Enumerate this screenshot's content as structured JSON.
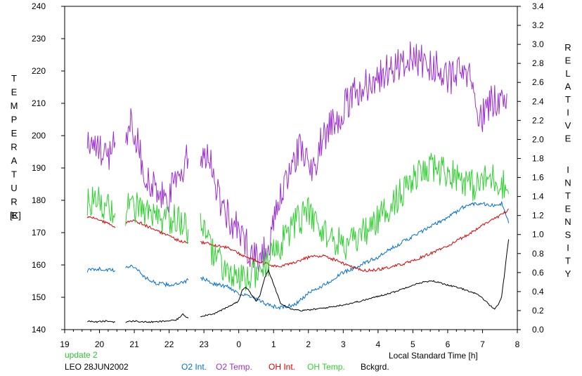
{
  "chart_data": {
    "type": "line",
    "xlabel": "Local Standard Time [h]",
    "left_axis_label": "TEMPERATURE",
    "left_axis_unit": "[K]",
    "right_axis_label": "RELATIVE INTENSITY",
    "x_range": [
      19,
      8
    ],
    "x_ticks": [
      "19",
      "20",
      "21",
      "22",
      "23",
      "0",
      "1",
      "2",
      "3",
      "4",
      "5",
      "6",
      "7",
      "8"
    ],
    "y_left_range": [
      140,
      240
    ],
    "y_left_ticks": [
      "140",
      "150",
      "160",
      "170",
      "180",
      "190",
      "200",
      "210",
      "220",
      "230",
      "240"
    ],
    "y_right_range": [
      0.0,
      3.4
    ],
    "y_right_ticks": [
      "0.0",
      "0.2",
      "0.4",
      "0.6",
      "0.8",
      "1.0",
      "1.2",
      "1.4",
      "1.6",
      "1.8",
      "2.0",
      "2.2",
      "2.4",
      "2.6",
      "2.8",
      "3.0",
      "3.2",
      "3.4"
    ],
    "grid": false,
    "legend_position": "bottom",
    "update_note": "update 2",
    "station_date": "LEO 28JUN2002",
    "series": [
      {
        "name": "O2 Int.",
        "axis": "right",
        "color": "#0070d0",
        "noise": 0.02,
        "segments": [
          {
            "x": [
              19.65,
              19.9,
              20.2,
              20.45
            ],
            "y": [
              0.62,
              0.64,
              0.63,
              0.62
            ]
          },
          {
            "x": [
              20.75,
              20.9,
              21.1,
              21.3,
              21.6,
              22.0,
              22.3,
              22.55
            ],
            "y": [
              0.64,
              0.68,
              0.63,
              0.55,
              0.49,
              0.47,
              0.48,
              0.52
            ]
          },
          {
            "x": [
              22.9,
              23.3,
              23.7,
              24.0,
              24.3,
              24.6,
              24.9,
              25.2,
              25.6,
              26.0,
              26.5,
              27.0,
              27.5,
              28.0,
              28.5,
              29.0,
              29.5,
              30.0,
              30.5,
              30.8,
              31.1,
              31.35,
              31.55,
              31.75
            ],
            "y": [
              0.55,
              0.48,
              0.45,
              0.38,
              0.35,
              0.3,
              0.25,
              0.23,
              0.26,
              0.38,
              0.48,
              0.6,
              0.68,
              0.76,
              0.88,
              0.98,
              1.08,
              1.18,
              1.3,
              1.33,
              1.32,
              1.3,
              1.33,
              1.12
            ]
          }
        ]
      },
      {
        "name": "O2 Temp.",
        "axis": "left",
        "color": "#9b30d0",
        "noise": 5.5,
        "segments": [
          {
            "x": [
              19.65,
              19.9,
              20.2,
              20.45
            ],
            "y": [
              199,
              196,
              193,
              198
            ]
          },
          {
            "x": [
              20.75,
              20.9,
              21.1,
              21.3,
              21.6,
              21.9,
              22.2,
              22.55
            ],
            "y": [
              200,
              205,
              198,
              188,
              183,
              179,
              186,
              193
            ]
          },
          {
            "x": [
              22.9,
              23.1,
              23.4,
              23.7,
              24.0,
              24.3,
              24.6,
              24.9,
              25.2,
              25.5,
              25.8,
              26.1,
              26.4,
              26.7,
              27.0,
              27.5,
              28.0,
              28.5,
              29.0,
              29.5,
              29.8,
              30.1,
              30.4,
              30.65,
              30.8,
              31.0,
              31.2,
              31.45,
              31.7
            ],
            "y": [
              190,
              197,
              182,
              175,
              170,
              165,
              162,
              168,
              180,
              192,
              196,
              188,
              200,
              204,
              208,
              215,
              218,
              222,
              224,
              222,
              220,
              218,
              219,
              218,
              208,
              206,
              210,
              212,
              213
            ]
          }
        ]
      },
      {
        "name": "OH Int.",
        "axis": "right",
        "color": "#d80000",
        "noise": 0.015,
        "segments": [
          {
            "x": [
              19.65,
              19.9,
              20.2,
              20.45
            ],
            "y": [
              1.18,
              1.17,
              1.12,
              1.07
            ]
          },
          {
            "x": [
              20.75,
              21.0,
              21.3,
              21.6,
              21.9,
              22.2,
              22.55
            ],
            "y": [
              1.13,
              1.15,
              1.1,
              1.05,
              1.0,
              0.95,
              0.91
            ]
          },
          {
            "x": [
              22.9,
              23.3,
              23.7,
              24.0,
              24.3,
              24.6,
              24.9,
              25.2,
              25.6,
              26.0,
              26.4,
              26.8,
              27.2,
              27.6,
              28.0,
              28.5,
              29.0,
              29.5,
              30.0,
              30.4,
              30.8,
              31.1,
              31.4,
              31.6,
              31.75
            ],
            "y": [
              0.92,
              0.89,
              0.86,
              0.8,
              0.75,
              0.71,
              0.68,
              0.66,
              0.71,
              0.76,
              0.78,
              0.73,
              0.66,
              0.62,
              0.63,
              0.67,
              0.72,
              0.8,
              0.88,
              0.96,
              1.05,
              1.12,
              1.18,
              1.22,
              1.27
            ]
          }
        ]
      },
      {
        "name": "OH Temp.",
        "axis": "left",
        "color": "#30d030",
        "noise": 5.0,
        "segments": [
          {
            "x": [
              19.65,
              19.9,
              20.2,
              20.45
            ],
            "y": [
              179,
              180,
              178,
              176
            ]
          },
          {
            "x": [
              20.75,
              21.0,
              21.3,
              21.6,
              21.9,
              22.2,
              22.55
            ],
            "y": [
              177,
              178,
              176,
              174,
              173,
              175,
              171
            ]
          },
          {
            "x": [
              22.9,
              23.2,
              23.5,
              23.8,
              24.1,
              24.4,
              24.7,
              25.0,
              25.3,
              25.6,
              26.0,
              26.4,
              26.8,
              27.2,
              27.6,
              28.0,
              28.4,
              28.8,
              29.2,
              29.6,
              30.0,
              30.4,
              30.8,
              31.0,
              31.3,
              31.6,
              31.75
            ],
            "y": [
              172,
              165,
              160,
              156,
              155,
              157,
              160,
              163,
              168,
              173,
              176,
              171,
              167,
              166,
              170,
              174,
              179,
              184,
              188,
              190,
              189,
              187,
              184,
              186,
              187,
              185,
              182
            ]
          }
        ]
      },
      {
        "name": "Bckgrd.",
        "axis": "right",
        "color": "#000000",
        "noise": 0.008,
        "segments": [
          {
            "x": [
              19.65,
              19.9,
              20.2,
              20.45
            ],
            "y": [
              0.09,
              0.08,
              0.09,
              0.08
            ]
          },
          {
            "x": [
              20.75,
              21.0,
              21.3,
              21.6,
              21.9,
              22.2,
              22.4,
              22.55
            ],
            "y": [
              0.08,
              0.09,
              0.08,
              0.08,
              0.09,
              0.1,
              0.16,
              0.12
            ]
          },
          {
            "x": [
              22.9,
              23.3,
              23.6,
              23.8,
              24.0,
              24.1,
              24.2,
              24.35,
              24.5,
              24.6,
              24.75,
              24.85,
              25.0,
              25.2,
              25.5,
              25.8,
              26.1,
              26.5,
              27.0,
              27.5,
              28.0,
              28.5,
              29.0,
              29.3,
              29.6,
              29.9,
              30.2,
              30.5,
              30.8,
              31.0,
              31.2,
              31.35,
              31.45,
              31.55,
              31.62,
              31.68,
              31.75
            ],
            "y": [
              0.14,
              0.17,
              0.22,
              0.26,
              0.3,
              0.42,
              0.45,
              0.38,
              0.3,
              0.35,
              0.55,
              0.62,
              0.48,
              0.28,
              0.22,
              0.2,
              0.21,
              0.23,
              0.26,
              0.3,
              0.35,
              0.4,
              0.47,
              0.5,
              0.51,
              0.48,
              0.45,
              0.42,
              0.38,
              0.33,
              0.26,
              0.22,
              0.26,
              0.35,
              0.55,
              0.75,
              0.95
            ]
          }
        ]
      }
    ]
  }
}
